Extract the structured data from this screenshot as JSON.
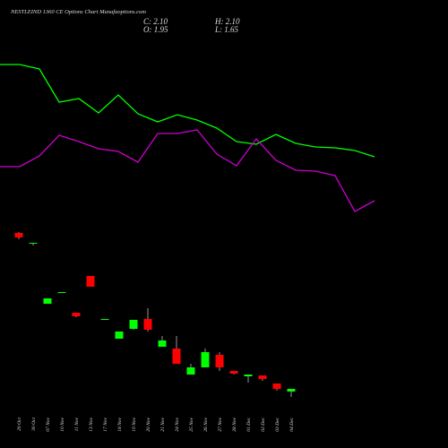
{
  "chart_data": {
    "type": "candlestick",
    "title": "NESTLEIND 1360 CE Options Chart Munafaoptions.com",
    "ohlc_labels": [
      "C: 2.10",
      "H: 2.10",
      "O: 1.95",
      "L: 1.65"
    ],
    "categories": [
      "29 Oct",
      "30 Oct",
      "07 Nov",
      "10 Nov",
      "11 Nov",
      "13 Nov",
      "17 Nov",
      "18 Nov",
      "19 Nov",
      "20 Nov",
      "21 Nov",
      "24 Nov",
      "25 Nov",
      "26 Nov",
      "27 Nov",
      "28 Nov",
      "01 Dec",
      "02 Dec",
      "03 Dec",
      "04 Dec"
    ],
    "open": [
      10.8,
      10.2,
      6.85,
      7.5,
      6.35,
      8.4,
      6.0,
      4.9,
      5.45,
      6.0,
      4.45,
      4.35,
      2.9,
      3.3,
      4.0,
      3.1,
      2.8,
      2.85,
      2.4,
      1.95
    ],
    "high": [
      10.85,
      10.25,
      7.15,
      7.5,
      6.35,
      8.4,
      6.0,
      5.3,
      5.95,
      6.6,
      5.05,
      5.05,
      3.5,
      4.35,
      4.15,
      3.1,
      2.9,
      2.85,
      2.4,
      2.1
    ],
    "low": [
      10.45,
      10.1,
      6.85,
      7.5,
      6.1,
      7.8,
      5.95,
      4.9,
      5.4,
      5.3,
      4.45,
      3.5,
      2.9,
      3.3,
      3.1,
      2.9,
      2.45,
      2.55,
      2.0,
      1.65
    ],
    "close": [
      10.55,
      10.25,
      7.15,
      7.5,
      6.15,
      7.8,
      6.0,
      5.3,
      5.95,
      5.4,
      4.8,
      3.5,
      3.3,
      4.15,
      3.3,
      2.95,
      2.9,
      2.65,
      2.1,
      2.1
    ],
    "up_color": "#00ff00",
    "down_color": "#ff0000",
    "lines": [
      {
        "color": "#00ff00",
        "values": [
          20.2,
          20.2,
          19.95,
          18.1,
          18.3,
          17.5,
          18.5,
          17.45,
          17.0,
          17.4,
          17.1,
          16.65,
          15.9,
          15.75,
          16.3,
          15.8,
          15.6,
          15.55,
          15.4,
          15.05
        ]
      },
      {
        "color": "#cc00cc",
        "values": [
          14.5,
          14.5,
          15.1,
          16.25,
          15.9,
          15.5,
          15.35,
          14.75,
          16.35,
          16.35,
          16.55,
          15.2,
          14.55,
          16.05,
          14.85,
          14.3,
          14.25,
          14.0,
          12.0,
          12.6
        ]
      }
    ],
    "ylim": [
      0,
      23.8
    ]
  }
}
